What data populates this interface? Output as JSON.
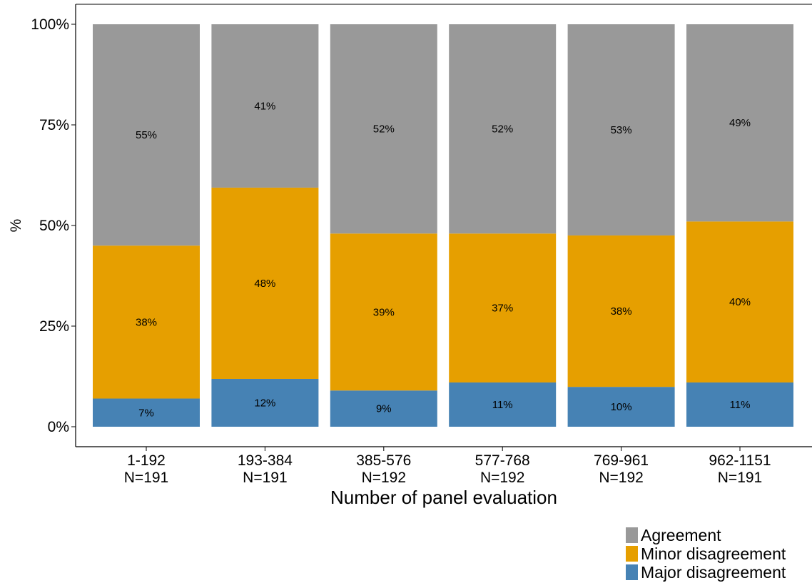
{
  "chart_data": {
    "type": "bar",
    "stacked": true,
    "categories": [
      "1-192",
      "193-384",
      "385-576",
      "577-768",
      "769-961",
      "962-1151"
    ],
    "category_counts": [
      "N=191",
      "N=191",
      "N=192",
      "N=192",
      "N=192",
      "N=191"
    ],
    "series": [
      {
        "name": "Major disagreement",
        "color": "#4682B4",
        "values": [
          7,
          12,
          9,
          11,
          10,
          11
        ],
        "labels": [
          "7%",
          "12%",
          "9%",
          "11%",
          "10%",
          "11%"
        ]
      },
      {
        "name": "Minor disagreement",
        "color": "#E69F00",
        "values": [
          38,
          48,
          39,
          37,
          38,
          40
        ],
        "labels": [
          "38%",
          "48%",
          "39%",
          "37%",
          "38%",
          "40%"
        ]
      },
      {
        "name": "Agreement",
        "color": "#999999",
        "values": [
          55,
          41,
          52,
          52,
          53,
          49
        ],
        "labels": [
          "55%",
          "41%",
          "52%",
          "52%",
          "53%",
          "49%"
        ]
      }
    ],
    "xlabel": "Number of panel evaluation",
    "ylabel": "%",
    "ylim": [
      0,
      100
    ],
    "yticks": [
      "0%",
      "25%",
      "50%",
      "75%",
      "100%"
    ],
    "ytick_values": [
      0,
      25,
      50,
      75,
      100
    ],
    "grid": false,
    "legend_position": "bottom-right"
  },
  "legend": {
    "items": [
      {
        "label": "Agreement",
        "color": "#999999"
      },
      {
        "label": "Minor disagreement",
        "color": "#E69F00"
      },
      {
        "label": "Major disagreement",
        "color": "#4682B4"
      }
    ]
  }
}
